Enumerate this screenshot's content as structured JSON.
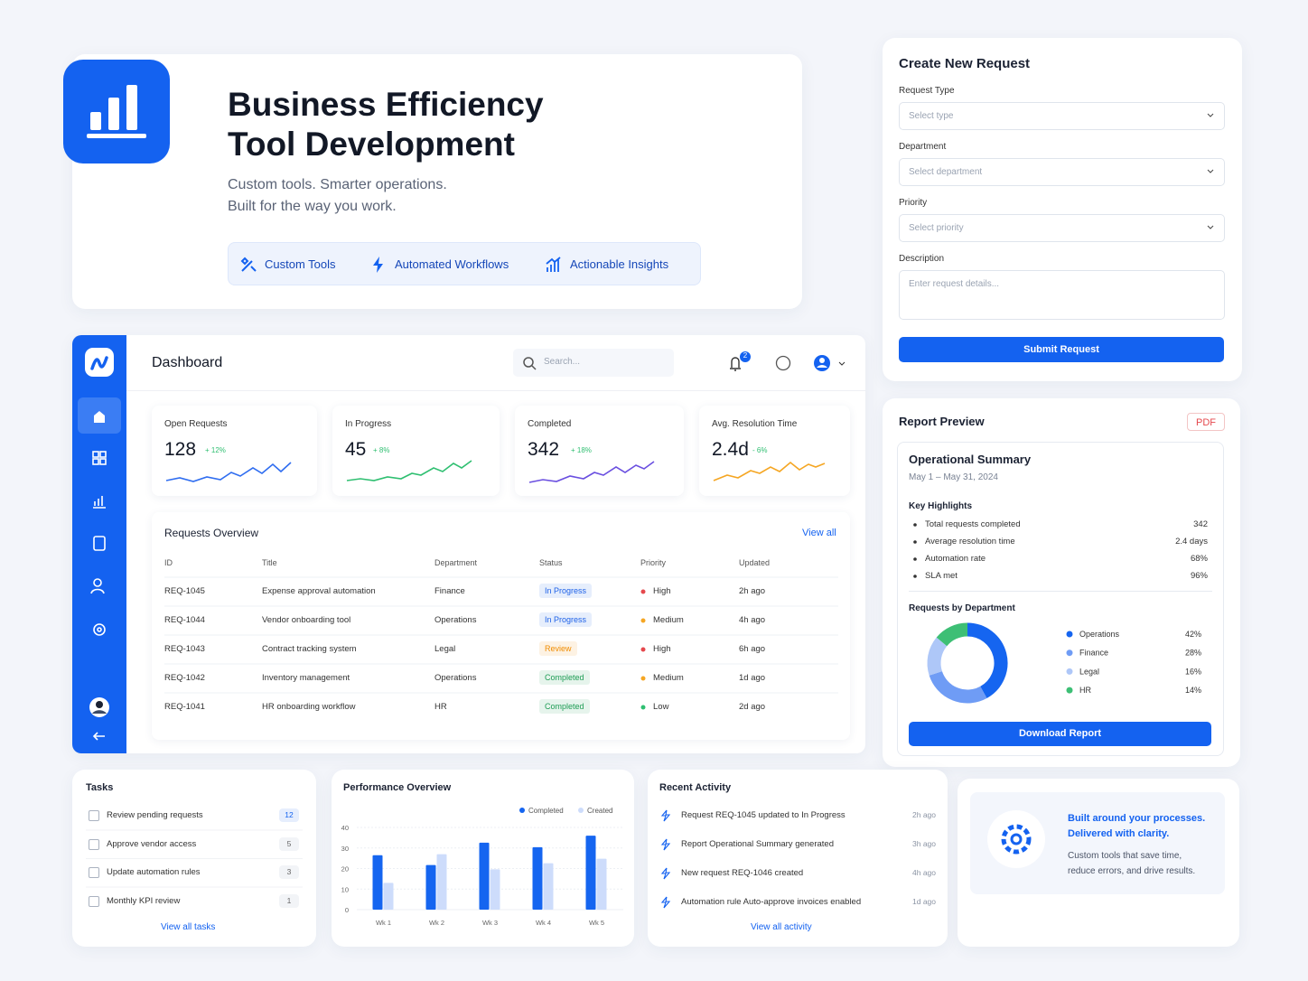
{
  "header": {
    "title_lines": [
      "Business Efficiency",
      "Tool Development"
    ],
    "subtitle_lines": [
      "Custom tools. Smarter operations.",
      "Built for the way you work."
    ],
    "features": [
      "Custom Tools",
      "Automated Workflows",
      "Actionable Insights"
    ]
  },
  "request_form": {
    "title": "Create New Request",
    "fields": [
      {
        "label": "Request Type",
        "placeholder": "Select type"
      },
      {
        "label": "Department",
        "placeholder": "Select department"
      },
      {
        "label": "Priority",
        "placeholder": "Select priority"
      },
      {
        "label": "Description",
        "placeholder": "Enter request details..."
      }
    ],
    "button": "Submit Request"
  },
  "dashboard": {
    "title": "Dashboard",
    "search_placeholder": "Search...",
    "notification_count": 2,
    "stats": [
      {
        "label": "Open Requests",
        "value": 128,
        "change": "+ 12%",
        "color": "#2f6df0"
      },
      {
        "label": "In Progress",
        "value": 45,
        "change": "+ 8%",
        "color": "#2fbf71"
      },
      {
        "label": "Completed",
        "value": 342,
        "change": "+ 18%",
        "color": "#6a4fe0"
      },
      {
        "label": "Avg. Resolution Time",
        "value": "2.4d",
        "change": "- 6%",
        "color": "#f5a623"
      }
    ],
    "requests": {
      "title": "Requests Overview",
      "view_all": "View all",
      "columns": [
        "ID",
        "Title",
        "Department",
        "Status",
        "Priority",
        "Updated"
      ],
      "rows": [
        {
          "id": "REQ-1045",
          "title": "Expense approval automation",
          "department": "Finance",
          "status": "In Progress",
          "status_color": "#1f62e8",
          "priority": "High",
          "priority_color": "#e5484d",
          "updated": "2h ago"
        },
        {
          "id": "REQ-1044",
          "title": "Vendor onboarding tool",
          "department": "Operations",
          "status": "In Progress",
          "status_color": "#1f62e8",
          "priority": "Medium",
          "priority_color": "#f5a623",
          "updated": "4h ago"
        },
        {
          "id": "REQ-1043",
          "title": "Contract tracking system",
          "department": "Legal",
          "status": "Review",
          "status_color": "#f08c00",
          "priority": "High",
          "priority_color": "#e5484d",
          "updated": "6h ago"
        },
        {
          "id": "REQ-1042",
          "title": "Inventory management",
          "department": "Operations",
          "status": "Completed",
          "status_color": "#1f9d55",
          "priority": "Medium",
          "priority_color": "#f5a623",
          "updated": "1d ago"
        },
        {
          "id": "REQ-1041",
          "title": "HR onboarding workflow",
          "department": "HR",
          "status": "Completed",
          "status_color": "#1f9d55",
          "priority": "Low",
          "priority_color": "#2fbf71",
          "updated": "2d ago"
        }
      ]
    }
  },
  "report": {
    "title": "Report Preview",
    "badge": "PDF",
    "summary_title": "Operational Summary",
    "date_range": "May 1 – May 31, 2024",
    "highlights_title": "Key Highlights",
    "highlights": [
      {
        "label": "Total requests completed",
        "value": 342
      },
      {
        "label": "Average resolution time",
        "value": "2.4 days"
      },
      {
        "label": "Automation rate",
        "value": "68%"
      },
      {
        "label": "SLA met",
        "value": "96%"
      }
    ],
    "button": "Download Report"
  },
  "chart_data": [
    {
      "type": "pie",
      "title": "Requests by Department",
      "categories": [
        "Operations",
        "Finance",
        "Legal",
        "HR"
      ],
      "values": [
        42,
        28,
        16,
        14
      ],
      "value_labels": [
        "42%",
        "28%",
        "16%",
        "14%"
      ],
      "colors": [
        "#1565f0",
        "#6f9cf5",
        "#aec7f8",
        "#3dbf75"
      ]
    },
    {
      "type": "bar",
      "title": "Performance Overview",
      "categories": [
        "Wk 1",
        "Wk 2",
        "Wk 3",
        "Wk 4",
        "Wk 5"
      ],
      "series": [
        {
          "name": "Completed",
          "color": "#1565f0",
          "values": [
            26.5,
            21.7,
            32.6,
            30.4,
            36
          ]
        },
        {
          "name": "Created",
          "color": "#cddcfb",
          "values": [
            13,
            27,
            19.6,
            22.6,
            24.8
          ]
        }
      ],
      "ylim": [
        0,
        40
      ],
      "yticks": [
        0,
        10,
        20,
        30,
        40
      ]
    }
  ],
  "tasks": {
    "title": "Tasks",
    "items": [
      {
        "label": "Review pending requests",
        "count": 12
      },
      {
        "label": "Approve vendor access",
        "count": 5
      },
      {
        "label": "Update automation rules",
        "count": 3
      },
      {
        "label": "Monthly KPI review",
        "count": 1
      }
    ],
    "link": "View all tasks"
  },
  "activity": {
    "title": "Recent Activity",
    "items": [
      {
        "text": "Request REQ-1045 updated to In Progress",
        "time": "2h ago"
      },
      {
        "text": "Report Operational Summary generated",
        "time": "3h ago"
      },
      {
        "text": "New request REQ-1046 created",
        "time": "4h ago"
      },
      {
        "text": "Automation rule Auto-approve invoices enabled",
        "time": "1d ago"
      }
    ],
    "link": "View all activity"
  },
  "promo": {
    "title_lines": [
      "Built around your processes.",
      "Delivered with clarity."
    ],
    "text_lines": [
      "Custom tools that save time,",
      "reduce errors, and drive results."
    ]
  }
}
